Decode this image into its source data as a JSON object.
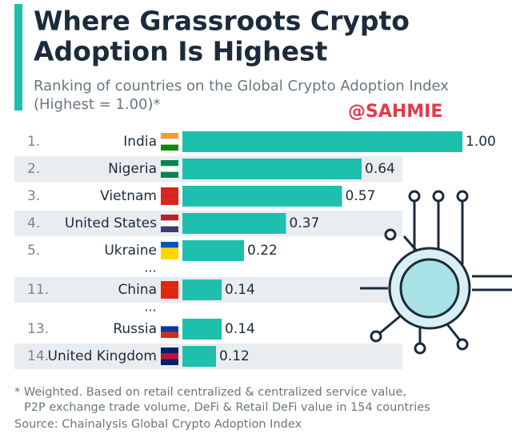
{
  "chart_data": {
    "type": "bar",
    "orientation": "horizontal",
    "title": [
      "Where Grassroots Crypto",
      "Adoption Is Highest"
    ],
    "subtitle": [
      "Ranking of countries on the Global Crypto Adoption Index",
      "(Highest = 1.00)*"
    ],
    "watermark": "@SAHMIE",
    "ranks": [
      "1.",
      "2.",
      "3.",
      "4.",
      "5.",
      null,
      "11.",
      null,
      "13.",
      "14."
    ],
    "categories": [
      "India",
      "Nigeria",
      "Vietnam",
      "United States",
      "Ukraine",
      "...",
      "China",
      "...",
      "Russia",
      "United Kingdom"
    ],
    "values": [
      1.0,
      0.64,
      0.57,
      0.37,
      0.22,
      null,
      0.14,
      null,
      0.14,
      0.12
    ],
    "value_labels": [
      "1.00",
      "0.64",
      "0.57",
      "0.37",
      "0.22",
      null,
      "0.14",
      null,
      "0.14",
      "0.12"
    ],
    "color": "#1fbfae",
    "footnote": [
      "* Weighted. Based on retail centralized & centralized service value,",
      "P2P exchange trade volume, DeFi & Retail DeFi value in 154 countries"
    ],
    "source": "Source: Chainalysis Global Crypto Adoption Index"
  }
}
